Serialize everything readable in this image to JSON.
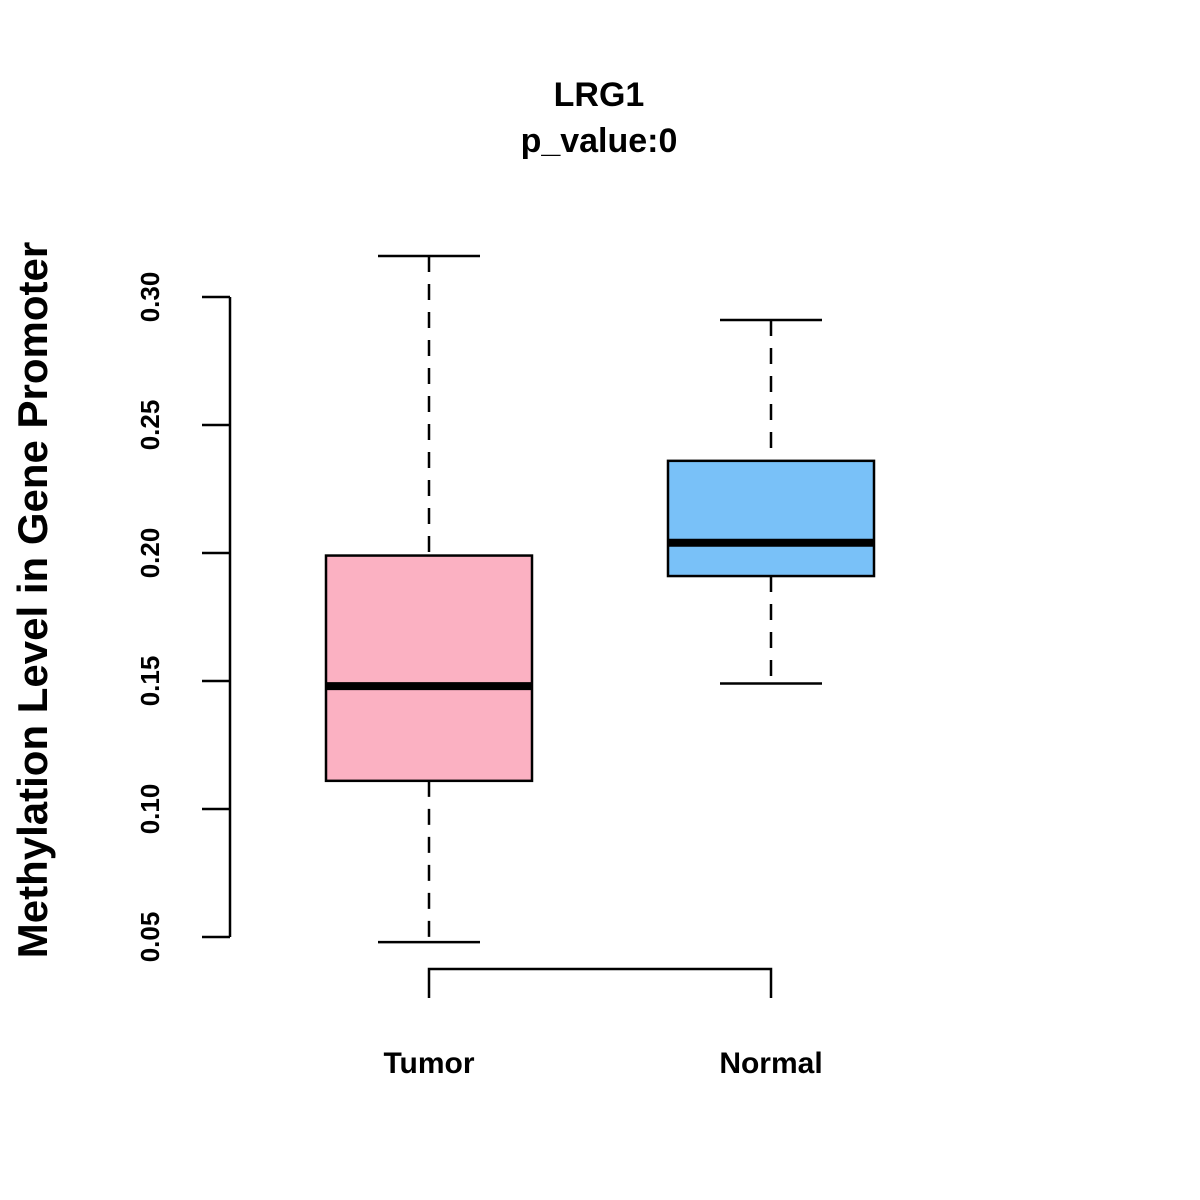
{
  "chart_data": {
    "type": "boxplot",
    "title": "LRG1",
    "subtitle": "p_value:0",
    "ylabel": "Methylation Level in Gene Promoter",
    "xlabel": "",
    "ylim": [
      0.05,
      0.3
    ],
    "yticks": [
      0.05,
      0.1,
      0.15,
      0.2,
      0.25,
      0.3
    ],
    "ytick_labels": [
      "0.05",
      "0.10",
      "0.15",
      "0.20",
      "0.25",
      "0.30"
    ],
    "categories": [
      "Tumor",
      "Normal"
    ],
    "series": [
      {
        "name": "Tumor",
        "color": "#fbb1c2",
        "min": 0.048,
        "q1": 0.111,
        "median": 0.148,
        "q3": 0.199,
        "max": 0.316
      },
      {
        "name": "Normal",
        "color": "#79c1f8",
        "min": 0.149,
        "q1": 0.191,
        "median": 0.204,
        "q3": 0.236,
        "max": 0.291
      }
    ],
    "significance_bracket": {
      "from": "Tumor",
      "to": "Normal"
    },
    "grid": false,
    "legend": "none"
  }
}
